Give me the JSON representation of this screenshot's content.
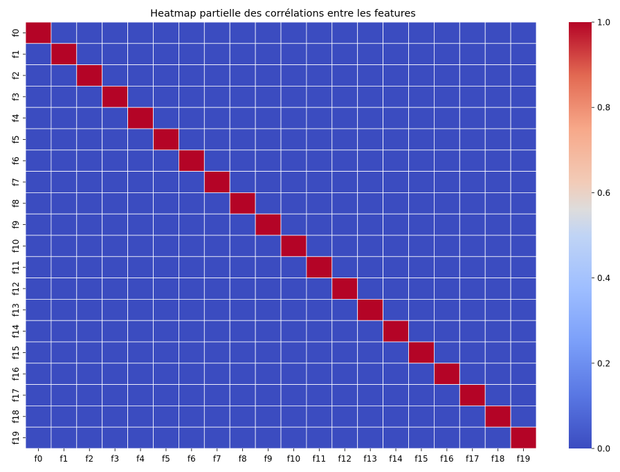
{
  "chart_data": {
    "type": "heatmap",
    "title": "Heatmap partielle des corrélations entre les features",
    "xlabel": "",
    "ylabel": "",
    "x_categories": [
      "f0",
      "f1",
      "f2",
      "f3",
      "f4",
      "f5",
      "f6",
      "f7",
      "f8",
      "f9",
      "f10",
      "f11",
      "f12",
      "f13",
      "f14",
      "f15",
      "f16",
      "f17",
      "f18",
      "f19"
    ],
    "y_categories": [
      "f0",
      "f1",
      "f2",
      "f3",
      "f4",
      "f5",
      "f6",
      "f7",
      "f8",
      "f9",
      "f10",
      "f11",
      "f12",
      "f13",
      "f14",
      "f15",
      "f16",
      "f17",
      "f18",
      "f19"
    ],
    "values": [
      [
        1,
        0,
        0,
        0,
        0,
        0,
        0,
        0,
        0,
        0,
        0,
        0,
        0,
        0,
        0,
        0,
        0,
        0,
        0,
        0
      ],
      [
        0,
        1,
        0,
        0,
        0,
        0,
        0,
        0,
        0,
        0,
        0,
        0,
        0,
        0,
        0,
        0,
        0,
        0,
        0,
        0
      ],
      [
        0,
        0,
        1,
        0,
        0,
        0,
        0,
        0,
        0,
        0,
        0,
        0,
        0,
        0,
        0,
        0,
        0,
        0,
        0,
        0
      ],
      [
        0,
        0,
        0,
        1,
        0,
        0,
        0,
        0,
        0,
        0,
        0,
        0,
        0,
        0,
        0,
        0,
        0,
        0,
        0,
        0
      ],
      [
        0,
        0,
        0,
        0,
        1,
        0,
        0,
        0,
        0,
        0,
        0,
        0,
        0,
        0,
        0,
        0,
        0,
        0,
        0,
        0
      ],
      [
        0,
        0,
        0,
        0,
        0,
        1,
        0,
        0,
        0,
        0,
        0,
        0,
        0,
        0,
        0,
        0,
        0,
        0,
        0,
        0
      ],
      [
        0,
        0,
        0,
        0,
        0,
        0,
        1,
        0,
        0,
        0,
        0,
        0,
        0,
        0,
        0,
        0,
        0,
        0,
        0,
        0
      ],
      [
        0,
        0,
        0,
        0,
        0,
        0,
        0,
        1,
        0,
        0,
        0,
        0,
        0,
        0,
        0,
        0,
        0,
        0,
        0,
        0
      ],
      [
        0,
        0,
        0,
        0,
        0,
        0,
        0,
        0,
        1,
        0,
        0,
        0,
        0,
        0,
        0,
        0,
        0,
        0,
        0,
        0
      ],
      [
        0,
        0,
        0,
        0,
        0,
        0,
        0,
        0,
        0,
        1,
        0,
        0,
        0,
        0,
        0,
        0,
        0,
        0,
        0,
        0
      ],
      [
        0,
        0,
        0,
        0,
        0,
        0,
        0,
        0,
        0,
        0,
        1,
        0,
        0,
        0,
        0,
        0,
        0,
        0,
        0,
        0
      ],
      [
        0,
        0,
        0,
        0,
        0,
        0,
        0,
        0,
        0,
        0,
        0,
        1,
        0,
        0,
        0,
        0,
        0,
        0,
        0,
        0
      ],
      [
        0,
        0,
        0,
        0,
        0,
        0,
        0,
        0,
        0,
        0,
        0,
        0,
        1,
        0,
        0,
        0,
        0,
        0,
        0,
        0
      ],
      [
        0,
        0,
        0,
        0,
        0,
        0,
        0,
        0,
        0,
        0,
        0,
        0,
        0,
        1,
        0,
        0,
        0,
        0,
        0,
        0
      ],
      [
        0,
        0,
        0,
        0,
        0,
        0,
        0,
        0,
        0,
        0,
        0,
        0,
        0,
        0,
        1,
        0,
        0,
        0,
        0,
        0
      ],
      [
        0,
        0,
        0,
        0,
        0,
        0,
        0,
        0,
        0,
        0,
        0,
        0,
        0,
        0,
        0,
        1,
        0,
        0,
        0,
        0
      ],
      [
        0,
        0,
        0,
        0,
        0,
        0,
        0,
        0,
        0,
        0,
        0,
        0,
        0,
        0,
        0,
        0,
        1,
        0,
        0,
        0
      ],
      [
        0,
        0,
        0,
        0,
        0,
        0,
        0,
        0,
        0,
        0,
        0,
        0,
        0,
        0,
        0,
        0,
        0,
        1,
        0,
        0
      ],
      [
        0,
        0,
        0,
        0,
        0,
        0,
        0,
        0,
        0,
        0,
        0,
        0,
        0,
        0,
        0,
        0,
        0,
        0,
        1,
        0
      ],
      [
        0,
        0,
        0,
        0,
        0,
        0,
        0,
        0,
        0,
        0,
        0,
        0,
        0,
        0,
        0,
        0,
        0,
        0,
        0,
        1
      ]
    ],
    "colormap": "coolwarm",
    "color_low": "#3b4cc0",
    "color_high": "#b40426",
    "cell_line_color": "#ffffff",
    "vmin": 0,
    "vmax": 1,
    "colorbar_ticks": [
      0.0,
      0.2,
      0.4,
      0.6,
      0.8,
      1.0
    ],
    "colorbar_tick_labels": [
      "0.0",
      "0.2",
      "0.4",
      "0.6",
      "0.8",
      "1.0"
    ],
    "colorbar_position": "right",
    "grid": false
  }
}
